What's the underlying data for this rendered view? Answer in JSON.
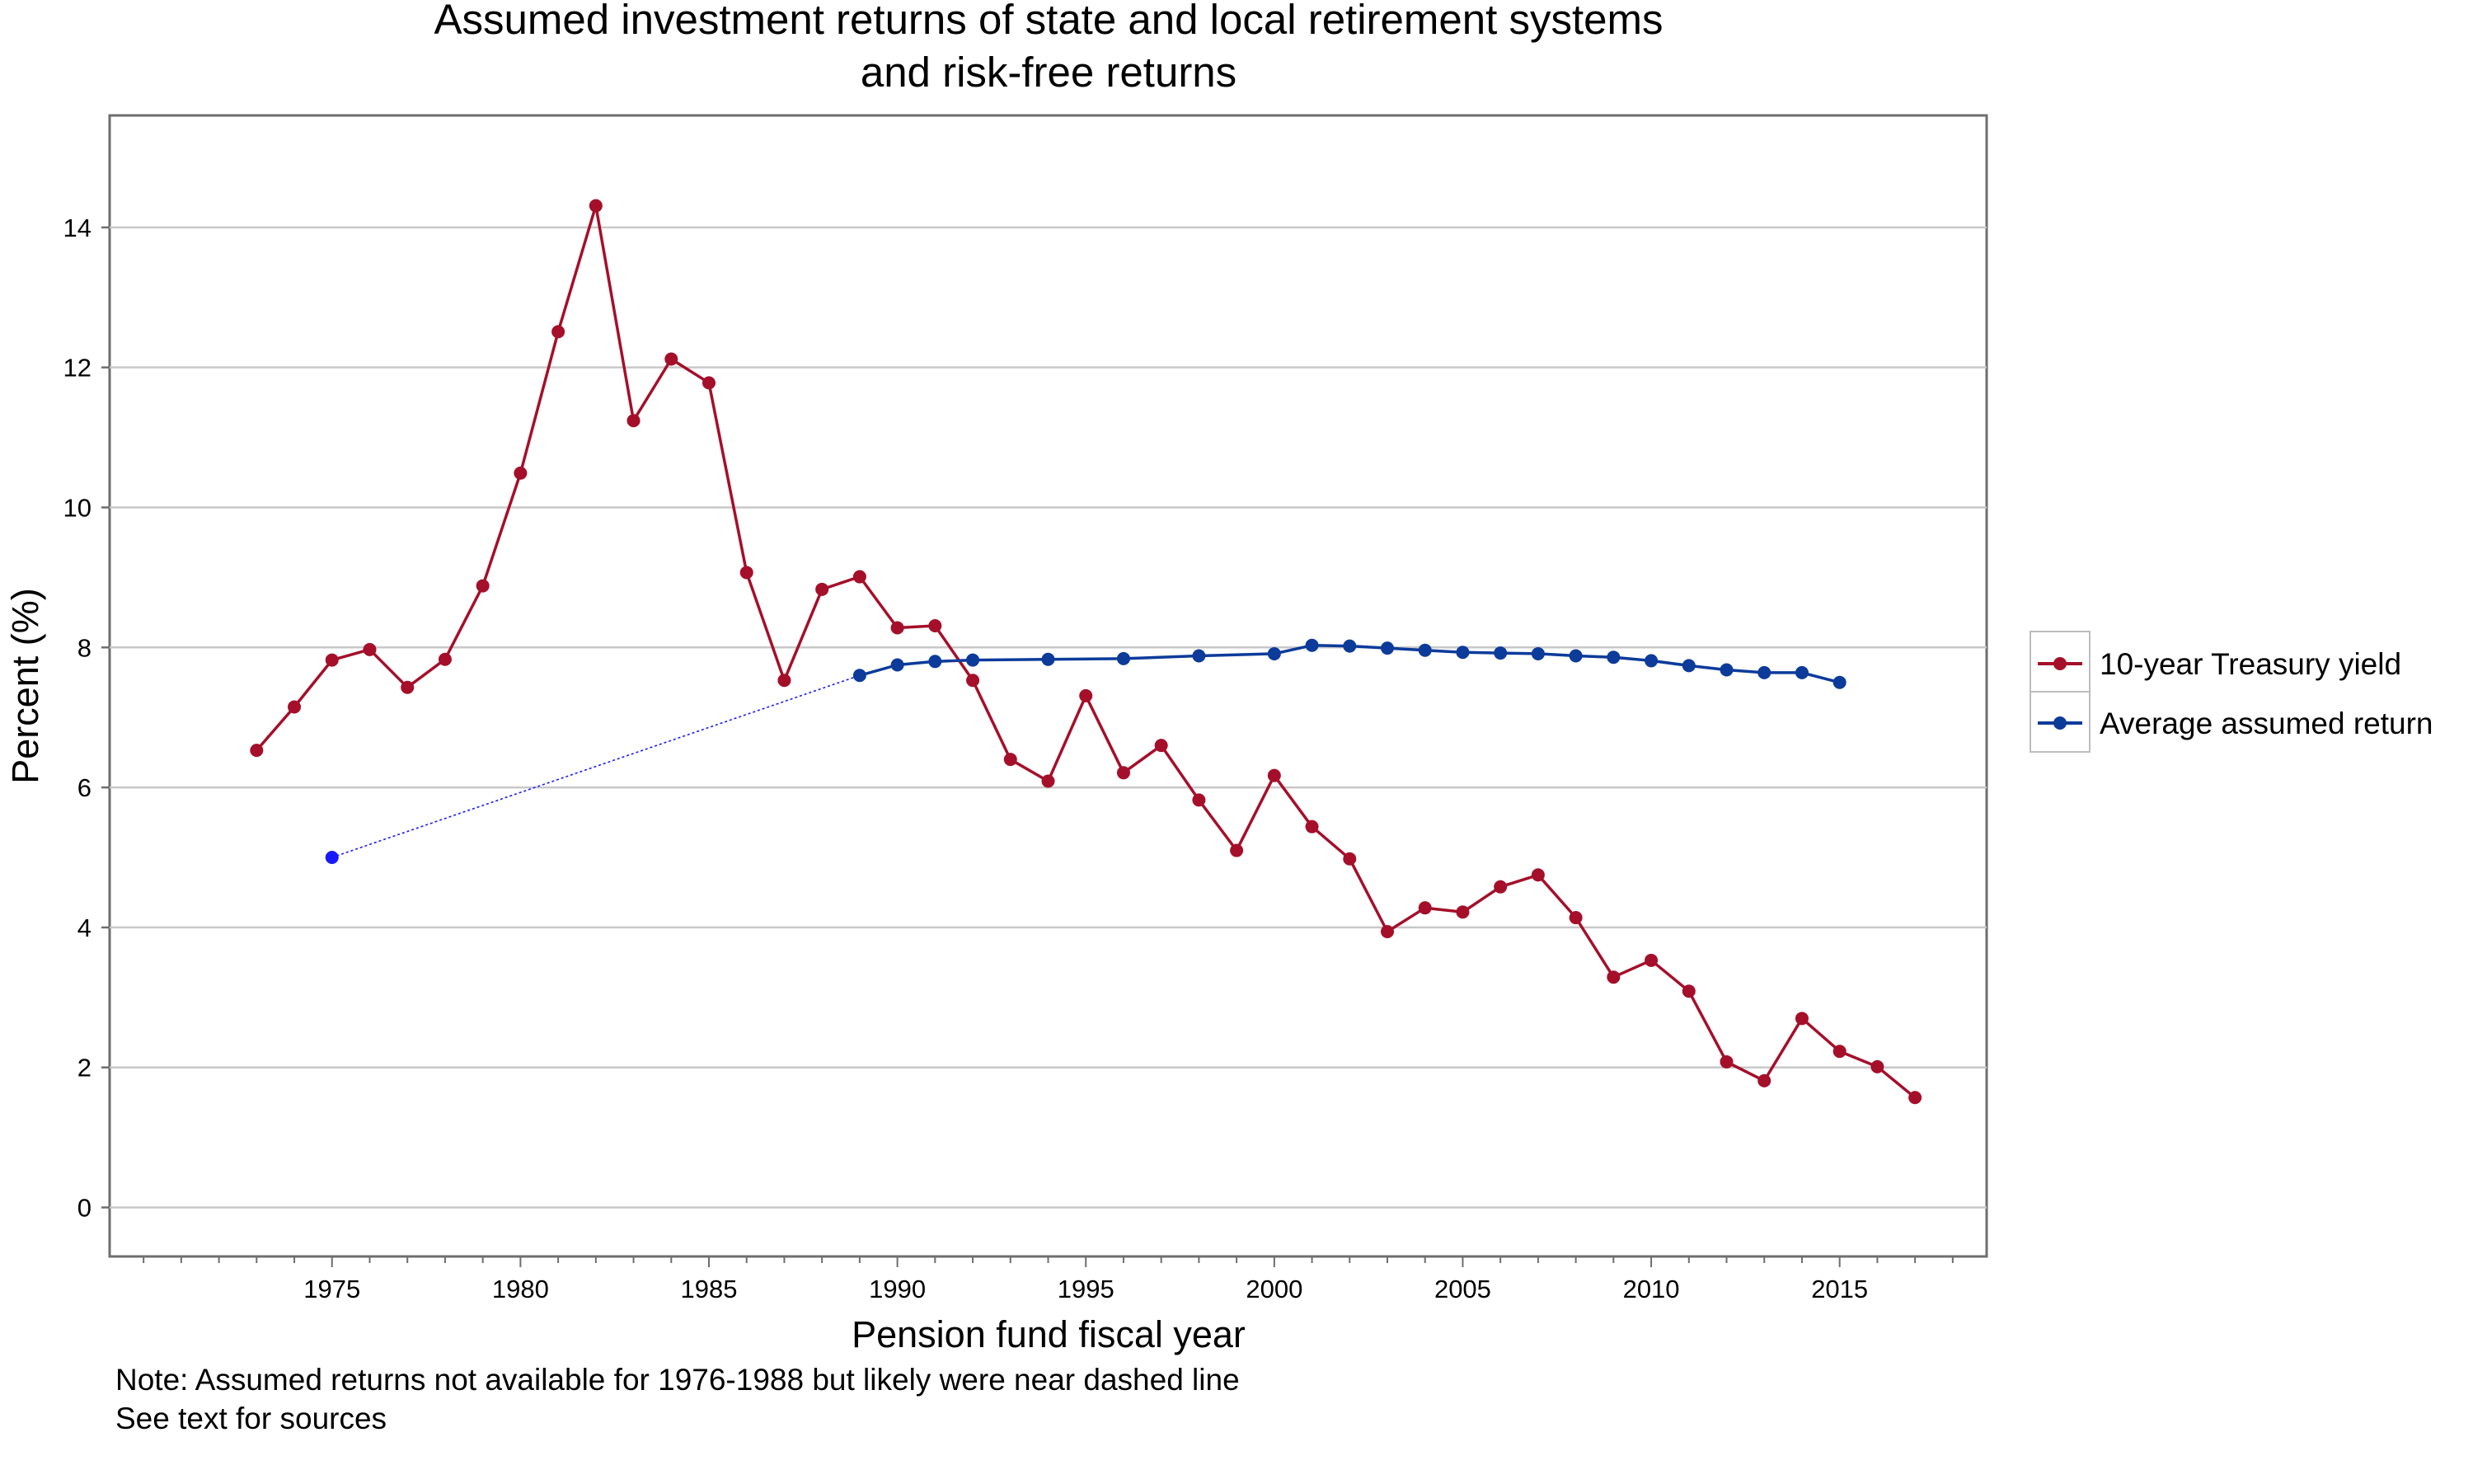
{
  "chart_data": {
    "type": "line",
    "title": [
      "Assumed investment returns of state and local retirement systems",
      "and risk-free returns"
    ],
    "xlabel": "Pension fund fiscal year",
    "ylabel": "Percent (%)",
    "xlim": [
      1969.1,
      2018.9
    ],
    "ylim": [
      -0.7,
      15.6
    ],
    "x_ticks": [
      "1975",
      "1980",
      "1985",
      "1990",
      "1995",
      "2000",
      "2005",
      "2010",
      "2015"
    ],
    "y_ticks": [
      "0",
      "2",
      "4",
      "6",
      "8",
      "10",
      "12",
      "14"
    ],
    "grid": "horizontal",
    "legend_position": "right",
    "series": [
      {
        "name": "10-year Treasury yield",
        "color": "#a50f2a",
        "points": [
          [
            1973,
            6.53
          ],
          [
            1974,
            7.15
          ],
          [
            1975,
            7.82
          ],
          [
            1976,
            7.97
          ],
          [
            1977,
            7.43
          ],
          [
            1978,
            7.83
          ],
          [
            1979,
            8.88
          ],
          [
            1980,
            10.49
          ],
          [
            1981,
            12.51
          ],
          [
            1982,
            14.31
          ],
          [
            1983,
            11.24
          ],
          [
            1984,
            12.12
          ],
          [
            1985,
            11.78
          ],
          [
            1986,
            9.07
          ],
          [
            1987,
            7.53
          ],
          [
            1988,
            8.83
          ],
          [
            1989,
            9.01
          ],
          [
            1990,
            8.28
          ],
          [
            1991,
            8.31
          ],
          [
            1992,
            7.53
          ],
          [
            1993,
            6.4
          ],
          [
            1994,
            6.09
          ],
          [
            1995,
            7.31
          ],
          [
            1996,
            6.21
          ],
          [
            1997,
            6.6
          ],
          [
            1998,
            5.82
          ],
          [
            1999,
            5.1
          ],
          [
            2000,
            6.17
          ],
          [
            2001,
            5.44
          ],
          [
            2002,
            4.98
          ],
          [
            2003,
            3.94
          ],
          [
            2004,
            4.28
          ],
          [
            2005,
            4.22
          ],
          [
            2006,
            4.58
          ],
          [
            2007,
            4.75
          ],
          [
            2008,
            4.14
          ],
          [
            2009,
            3.29
          ],
          [
            2010,
            3.53
          ],
          [
            2011,
            3.09
          ],
          [
            2012,
            2.08
          ],
          [
            2013,
            1.81
          ],
          [
            2014,
            2.7
          ],
          [
            2015,
            2.23
          ],
          [
            2016,
            2.01
          ],
          [
            2017,
            1.57
          ]
        ]
      },
      {
        "name": "Average assumed return",
        "color": "#0c3b9a",
        "points": [
          [
            1989,
            7.6
          ],
          [
            1990,
            7.75
          ],
          [
            1991,
            7.8
          ],
          [
            1992,
            7.82
          ],
          [
            1994,
            7.83
          ],
          [
            1996,
            7.84
          ],
          [
            1998,
            7.88
          ],
          [
            2000,
            7.91
          ],
          [
            2001,
            8.03
          ],
          [
            2002,
            8.02
          ],
          [
            2003,
            7.99
          ],
          [
            2004,
            7.96
          ],
          [
            2005,
            7.93
          ],
          [
            2006,
            7.92
          ],
          [
            2007,
            7.91
          ],
          [
            2008,
            7.88
          ],
          [
            2009,
            7.86
          ],
          [
            2010,
            7.81
          ],
          [
            2011,
            7.74
          ],
          [
            2012,
            7.68
          ],
          [
            2013,
            7.64
          ],
          [
            2014,
            7.64
          ],
          [
            2015,
            7.5
          ]
        ]
      }
    ],
    "reference_point": {
      "x": 1975,
      "y": 5.0,
      "color": "#1a1aff"
    },
    "dashed_connector": {
      "from": [
        1975,
        5.0
      ],
      "to": [
        1989,
        7.6
      ],
      "color": "#1a1aff"
    }
  },
  "notes": [
    "Note: Assumed returns not available for 1976-1988 but likely were near dashed line",
    "See text for sources"
  ]
}
